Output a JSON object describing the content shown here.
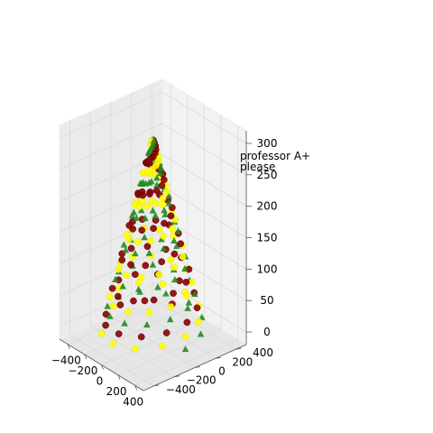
{
  "chart_data": {
    "type": "scatter",
    "title": "",
    "xlabel": "",
    "ylabel": "",
    "zlabel": "",
    "xlim": [
      -500,
      500
    ],
    "ylim": [
      -500,
      500
    ],
    "zlim": [
      -20,
      320
    ],
    "x_ticks": [
      -400,
      -200,
      0,
      200,
      400
    ],
    "y_ticks": [
      -400,
      -200,
      0,
      200,
      400
    ],
    "z_ticks": [
      0,
      50,
      100,
      150,
      200,
      250,
      300
    ],
    "grid": true,
    "projection": "3d cone-shaped scatter (Christmas tree)",
    "tree": {
      "base_radius": 400,
      "height": 300,
      "turns": 6,
      "points_per_series": 70
    },
    "series": [
      {
        "color": "#228b22",
        "marker": "triangle",
        "phase": 0.0
      },
      {
        "color": "#8b0000",
        "marker": "circle",
        "phase": 0.33
      },
      {
        "color": "#ffff00",
        "marker": "circle",
        "phase": 0.66
      }
    ],
    "annotations": [
      {
        "text": "professor A+",
        "color": "#000000"
      },
      {
        "text": "please",
        "color": "#ff0000"
      }
    ]
  }
}
